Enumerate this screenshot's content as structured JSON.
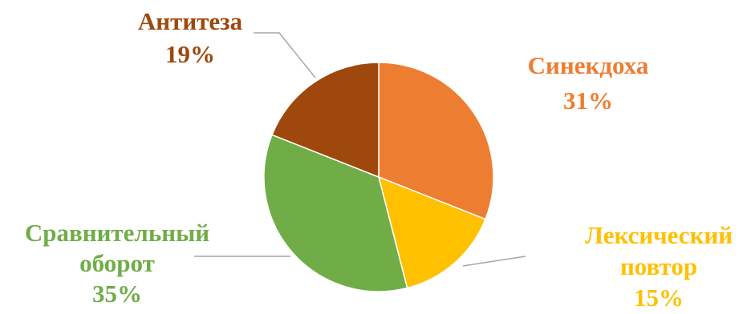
{
  "chart_data": {
    "type": "pie",
    "title": "",
    "slices": [
      {
        "label": "Синекдоха",
        "label_lines": [
          "Синекдоха"
        ],
        "percent_label": "31%",
        "value": 31,
        "color": "#ED7D31"
      },
      {
        "label": "Лексический повтор",
        "label_lines": [
          "Лексический",
          "повтор"
        ],
        "percent_label": "15%",
        "value": 15,
        "color": "#FFC000"
      },
      {
        "label": "Сравнительный оборот",
        "label_lines": [
          "Сравнительный",
          "оборот"
        ],
        "percent_label": "35%",
        "value": 35,
        "color": "#70AD47"
      },
      {
        "label": "Антитеза",
        "label_lines": [
          "Антитеза"
        ],
        "percent_label": "19%",
        "value": 19,
        "color": "#9E480E"
      }
    ],
    "start_angle": "12 o'clock",
    "direction": "clockwise",
    "legend": "none",
    "data_labels": "outside with leader lines"
  }
}
